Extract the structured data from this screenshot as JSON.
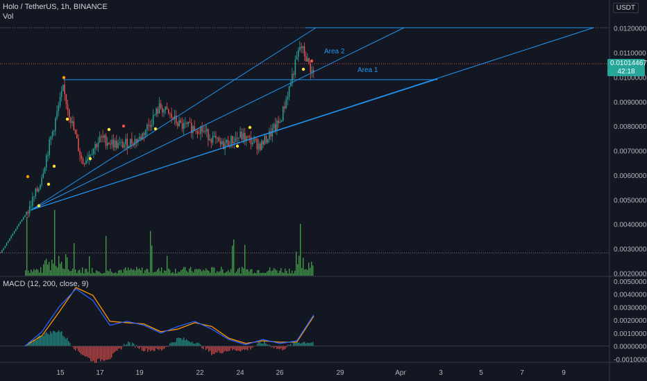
{
  "header": {
    "symbol_line": "Holo / TetherUS, 1h, BINANCE",
    "vol_label": "Vol",
    "currency": "USDT"
  },
  "price_tag": {
    "value": "0.01014467",
    "countdown": "42:18"
  },
  "annotations": {
    "area1": "Area 1",
    "area2": "Area 2"
  },
  "colors": {
    "background": "#131722",
    "up": "#26a69a",
    "down": "#ef5350",
    "trendline": "#2196f3",
    "macd": "#2962ff",
    "signal": "#ff9800",
    "volume": "#4caf50"
  },
  "chart_data": [
    {
      "type": "candlestick",
      "title": "Holo / TetherUS, 1h, BINANCE",
      "y_axis": {
        "ticks": [
          "0.0120000",
          "0.0110000",
          "0.0100000",
          "0.0090000",
          "0.0080000",
          "0.0070000",
          "0.0060000",
          "0.0050000",
          "0.0040000",
          "0.0030000",
          "0.0020000"
        ],
        "ylim": [
          0.0019,
          0.0123
        ],
        "unit": "USDT"
      },
      "x_axis": {
        "ticks": [
          "15",
          "17",
          "19",
          "22",
          "24",
          "26",
          "29",
          "Apr",
          "3",
          "5",
          "7",
          "9"
        ]
      },
      "approx_close_path": [
        {
          "x": "13",
          "y": 0.00285
        },
        {
          "x": "14",
          "y": 0.0046
        },
        {
          "x": "14.5",
          "y": 0.0055
        },
        {
          "x": "15",
          "y": 0.0095
        },
        {
          "x": "16",
          "y": 0.0065
        },
        {
          "x": "17",
          "y": 0.0075
        },
        {
          "x": "18",
          "y": 0.0072
        },
        {
          "x": "19",
          "y": 0.0075
        },
        {
          "x": "20",
          "y": 0.0088
        },
        {
          "x": "21",
          "y": 0.008
        },
        {
          "x": "22",
          "y": 0.0079
        },
        {
          "x": "23",
          "y": 0.0072
        },
        {
          "x": "24",
          "y": 0.0076
        },
        {
          "x": "25",
          "y": 0.0072
        },
        {
          "x": "26",
          "y": 0.0082
        },
        {
          "x": "27",
          "y": 0.0113
        },
        {
          "x": "27.5",
          "y": 0.01014
        }
      ],
      "last_price": 0.01014467
    },
    {
      "type": "line",
      "title": "MACD (12, 200, close, 9)",
      "y_axis": {
        "ticks": [
          "0.0050000",
          "0.0040000",
          "0.0030000",
          "0.0020000",
          "0.0010000",
          "0.0000000",
          "-0.0010000"
        ],
        "ylim": [
          -0.0012,
          0.0052
        ]
      },
      "series": [
        {
          "name": "MACD",
          "values": [
            0.0,
            0.0011,
            0.003,
            0.0044,
            0.0035,
            0.0016,
            0.0019,
            0.0016,
            0.001,
            0.0015,
            0.0019,
            0.0013,
            0.0005,
            0.0001,
            0.0005,
            0.0002,
            0.0004,
            0.0024
          ]
        },
        {
          "name": "Signal",
          "values": [
            0.0,
            0.0008,
            0.0026,
            0.0045,
            0.0039,
            0.0019,
            0.0018,
            0.0017,
            0.0011,
            0.0013,
            0.0018,
            0.0015,
            0.0006,
            0.0002,
            0.0004,
            0.0003,
            0.0003,
            0.0023
          ]
        }
      ]
    }
  ]
}
